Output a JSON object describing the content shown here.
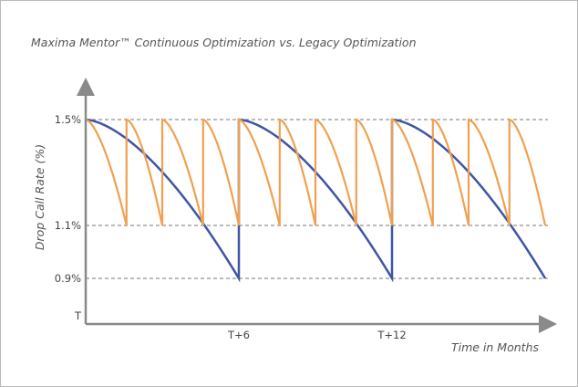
{
  "chart_data": {
    "type": "line",
    "title": "Maxima Mentor™ Continuous Optimization vs. Legacy Optimization",
    "xlabel": "Time in Months",
    "ylabel": "Drop Call Rate (%)",
    "x_ticks": [
      {
        "label": "T+6",
        "value": 6
      },
      {
        "label": "T+12",
        "value": 12
      }
    ],
    "y_ticks": [
      {
        "label": "1.5%",
        "value": 1.5
      },
      {
        "label": "1.1%",
        "value": 1.1
      },
      {
        "label": "0.9%",
        "value": 0.9
      },
      {
        "label": "T",
        "value": 0.8
      }
    ],
    "reference_lines": [
      1.5,
      1.1,
      0.9
    ],
    "xlim": [
      0,
      18
    ],
    "ylim": [
      0.8,
      1.5
    ],
    "grid": false,
    "series": [
      {
        "color": "#3f55a5",
        "shape": "sawtooth-decay",
        "cycles": [
          {
            "start": 0,
            "end": 6,
            "from": 1.5,
            "to": 0.9
          },
          {
            "start": 6,
            "end": 12,
            "from": 1.5,
            "to": 0.9
          },
          {
            "start": 12,
            "end": 18,
            "from": 1.5,
            "to": 0.9
          }
        ]
      },
      {
        "color": "#f0a050",
        "shape": "sawtooth-decay",
        "cycles": [
          {
            "start": 0,
            "end": 1.6,
            "from": 1.5,
            "to": 1.1
          },
          {
            "start": 1.6,
            "end": 3.0,
            "from": 1.5,
            "to": 1.1
          },
          {
            "start": 3.0,
            "end": 4.6,
            "from": 1.5,
            "to": 1.1
          },
          {
            "start": 4.6,
            "end": 6.0,
            "from": 1.5,
            "to": 1.1
          },
          {
            "start": 6.0,
            "end": 7.6,
            "from": 1.5,
            "to": 1.1
          },
          {
            "start": 7.6,
            "end": 9.0,
            "from": 1.5,
            "to": 1.1
          },
          {
            "start": 9.0,
            "end": 10.6,
            "from": 1.5,
            "to": 1.1
          },
          {
            "start": 10.6,
            "end": 12.0,
            "from": 1.5,
            "to": 1.1
          },
          {
            "start": 12.0,
            "end": 13.6,
            "from": 1.5,
            "to": 1.1
          },
          {
            "start": 13.6,
            "end": 15.0,
            "from": 1.5,
            "to": 1.1
          },
          {
            "start": 15.0,
            "end": 16.6,
            "from": 1.5,
            "to": 1.1
          },
          {
            "start": 16.6,
            "end": 18.0,
            "from": 1.5,
            "to": 1.1
          }
        ]
      }
    ]
  },
  "colors": {
    "axis": "#8a8a8a",
    "reference_line": "#777777",
    "frame_border": "#b9b9b9"
  }
}
